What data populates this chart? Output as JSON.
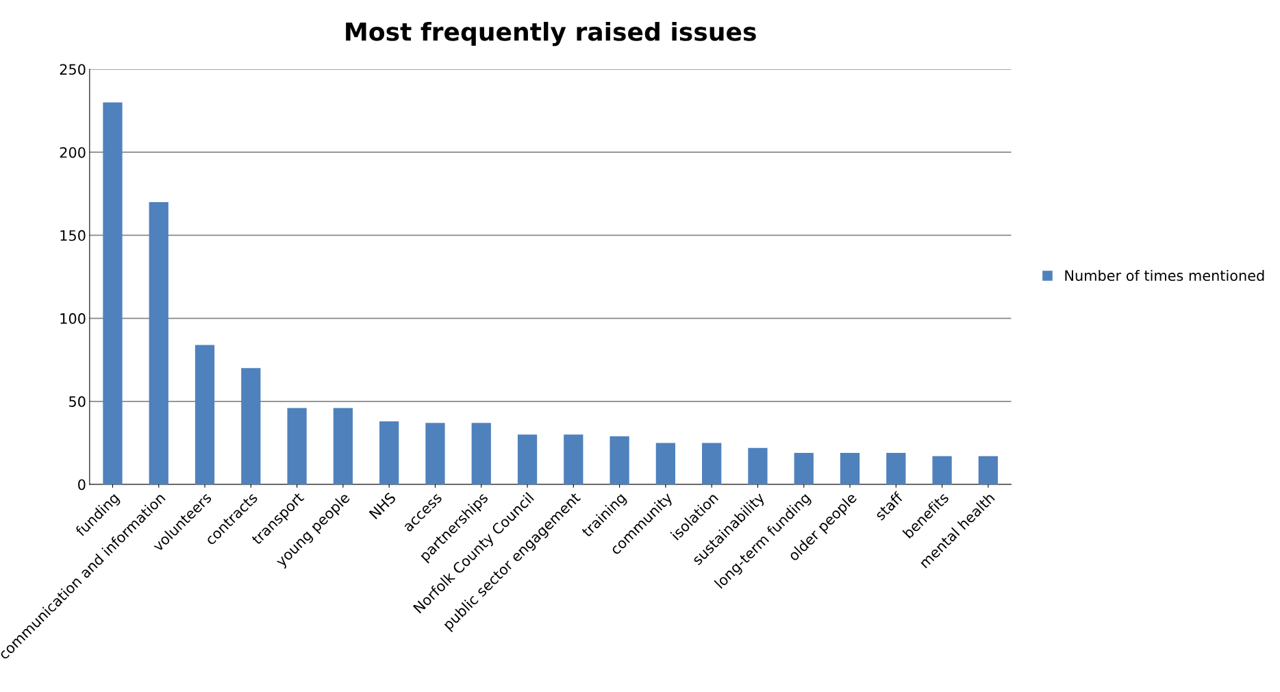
{
  "chart_data": {
    "type": "bar",
    "title": "Most frequently raised issues",
    "categories": [
      "funding",
      "communication and information",
      "volunteers",
      "contracts",
      "transport",
      "young people",
      "NHS",
      "access",
      "partnerships",
      "Norfolk County Council",
      "public sector engagement",
      "training",
      "community",
      "isolation",
      "sustainability",
      "long-term funding",
      "older people",
      "staff",
      "benefits",
      "mental health"
    ],
    "series": [
      {
        "name": "Number of times mentioned",
        "color": "#4f81bd",
        "values": [
          230,
          170,
          84,
          70,
          46,
          46,
          38,
          37,
          37,
          30,
          30,
          29,
          25,
          25,
          22,
          19,
          19,
          19,
          17,
          17
        ]
      }
    ],
    "ylim": [
      0,
      250
    ],
    "yticks": [
      0,
      50,
      100,
      150,
      200,
      250
    ],
    "grid": "y",
    "legend": "right"
  }
}
